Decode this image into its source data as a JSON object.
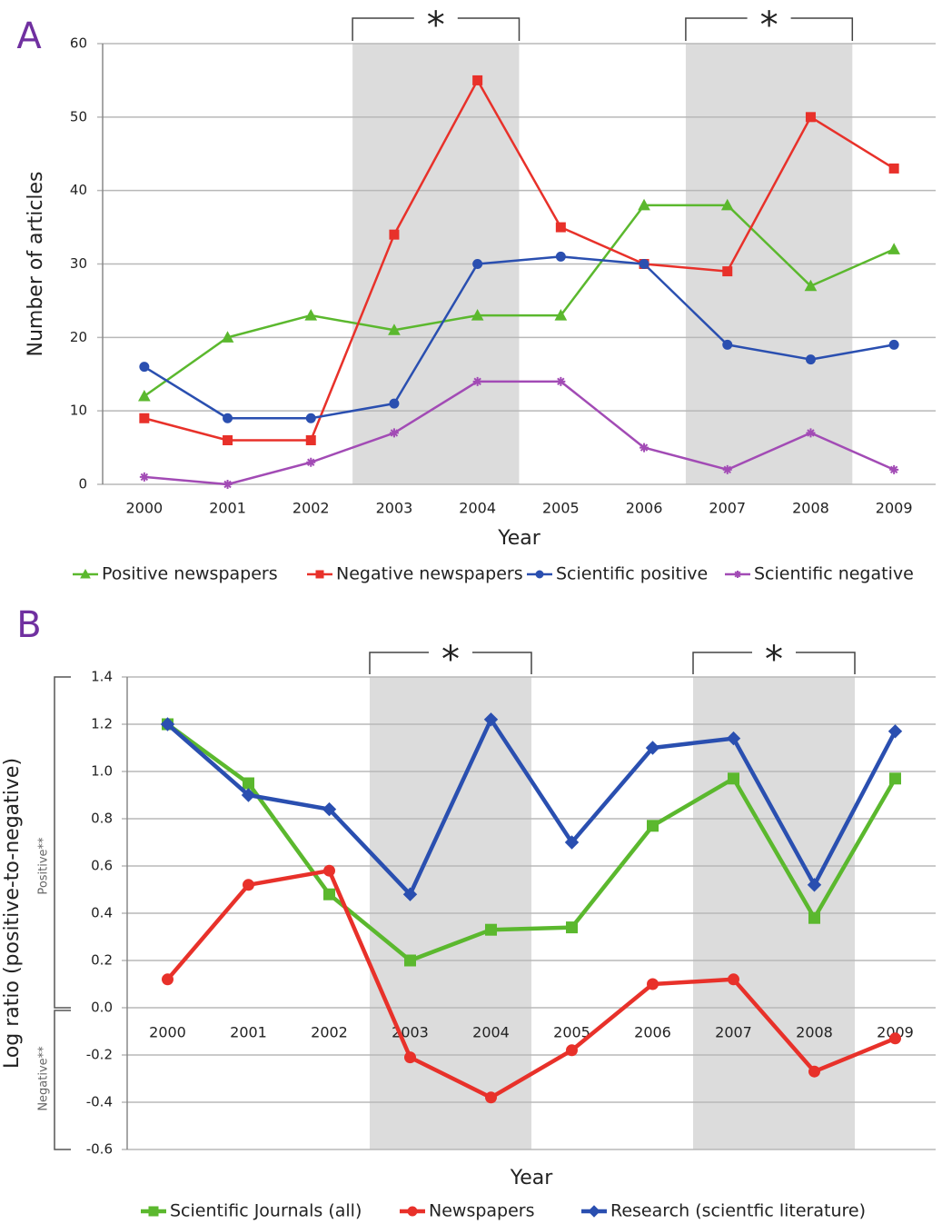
{
  "chart_data": [
    {
      "type": "line",
      "panel_label": "A",
      "x_label": "Year",
      "y_label": "Number of articles",
      "categories": [
        "2000",
        "2001",
        "2002",
        "2003",
        "2004",
        "2005",
        "2006",
        "2007",
        "2008",
        "2009"
      ],
      "ylim": [
        0,
        60
      ],
      "yticks": [
        0,
        10,
        20,
        30,
        40,
        50,
        60
      ],
      "grid": true,
      "highlights": [
        [
          "2003",
          "2004"
        ],
        [
          "2007",
          "2008"
        ]
      ],
      "highlight_label": "*",
      "series": [
        {
          "name": "Positive newspapers",
          "color": "#5bb82e",
          "marker": "triangle",
          "values": [
            12,
            20,
            23,
            21,
            23,
            23,
            38,
            38,
            27,
            32
          ]
        },
        {
          "name": "Negative newspapers",
          "color": "#e8312a",
          "marker": "square",
          "values": [
            9,
            6,
            6,
            34,
            55,
            35,
            30,
            29,
            50,
            43
          ]
        },
        {
          "name": "Scientific positive",
          "color": "#2a4fb0",
          "marker": "circle",
          "values": [
            16,
            9,
            9,
            11,
            30,
            31,
            30,
            19,
            17,
            19
          ]
        },
        {
          "name": "Scientific negative",
          "color": "#a24bb5",
          "marker": "star",
          "values": [
            1,
            0,
            3,
            7,
            14,
            14,
            5,
            2,
            7,
            2
          ]
        }
      ]
    },
    {
      "type": "line",
      "panel_label": "B",
      "x_label": "Year",
      "y_label": "Log ratio (positive-to-negative)",
      "positive_label": "Positive**",
      "negative_label": "Negative**",
      "categories": [
        "2000",
        "2001",
        "2002",
        "2003",
        "2004",
        "2005",
        "2006",
        "2007",
        "2008",
        "2009"
      ],
      "ylim": [
        -0.6,
        1.4
      ],
      "yticks": [
        -0.6,
        -0.4,
        -0.2,
        {
          "value": 0,
          "label": "0.0"
        },
        0.2,
        0.4,
        0.6,
        0.8,
        {
          "value": 1,
          "label": "1.0"
        },
        1.2,
        1.4
      ],
      "grid": true,
      "highlights": [
        [
          "2003",
          "2004"
        ],
        [
          "2007",
          "2008"
        ]
      ],
      "highlight_label": "*",
      "series": [
        {
          "name": "Scientific Journals (all)",
          "color": "#5bb82e",
          "marker": "square",
          "values": [
            1.2,
            0.95,
            0.48,
            0.2,
            0.33,
            0.34,
            0.77,
            0.97,
            0.38,
            0.97
          ]
        },
        {
          "name": "Newspapers",
          "color": "#e8312a",
          "marker": "circle",
          "values": [
            0.12,
            0.52,
            0.58,
            -0.21,
            -0.38,
            -0.18,
            0.1,
            0.12,
            -0.27,
            -0.13
          ]
        },
        {
          "name": "Research (scientfic literature)",
          "color": "#2a4fb0",
          "marker": "diamond",
          "values": [
            1.2,
            0.9,
            0.84,
            0.48,
            1.22,
            0.7,
            1.1,
            1.14,
            0.52,
            1.17
          ]
        }
      ]
    }
  ]
}
